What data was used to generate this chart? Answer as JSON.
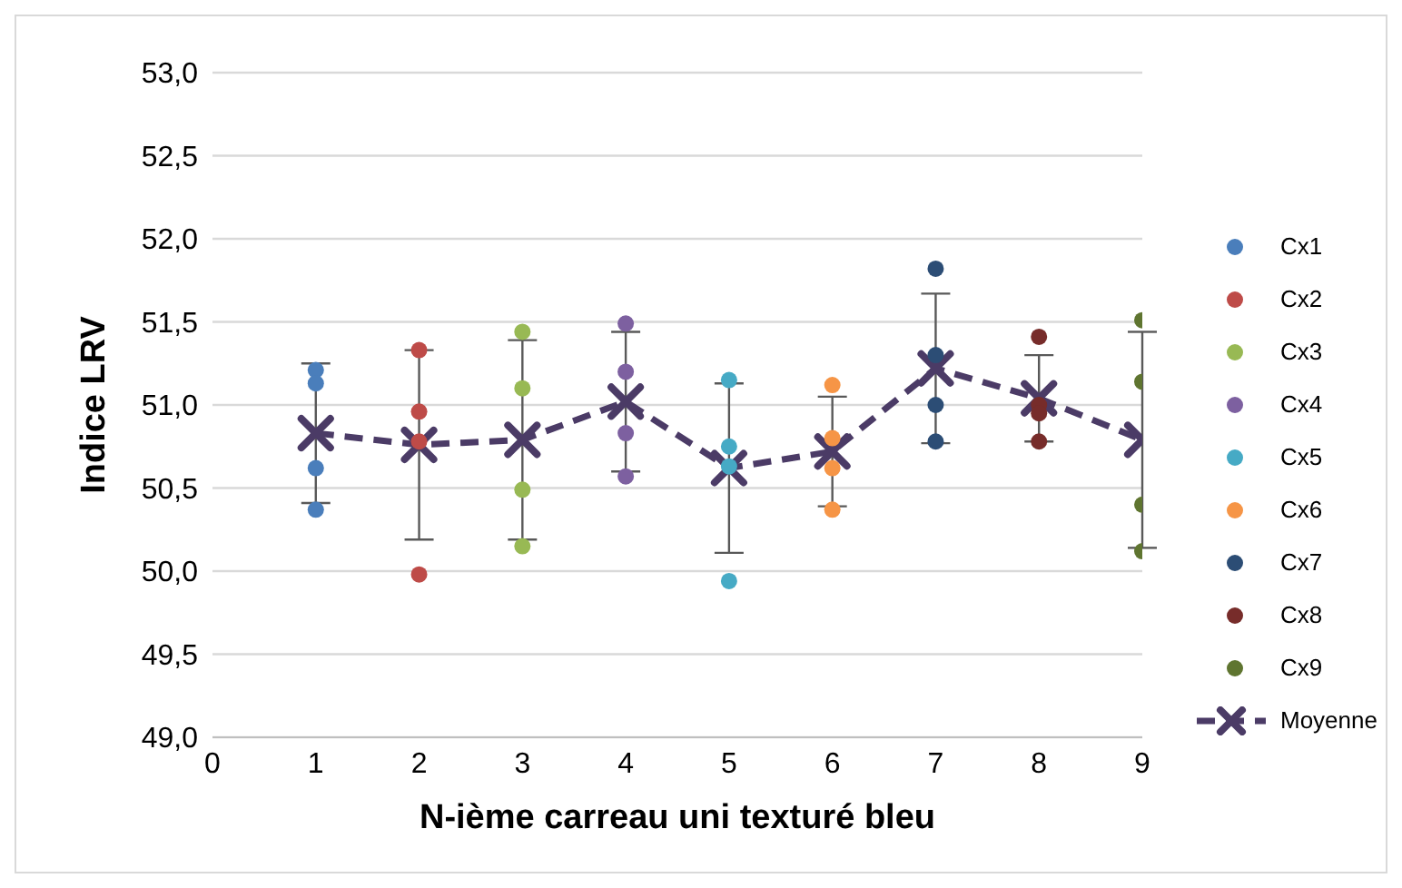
{
  "chart_data": {
    "type": "scatter",
    "xlabel": "N-ième carreau uni texturé bleu",
    "ylabel": "Indice LRV",
    "xlim": [
      0,
      9
    ],
    "xticks": [
      0,
      1,
      2,
      3,
      4,
      5,
      6,
      7,
      8,
      9
    ],
    "ylim": [
      49,
      53
    ],
    "yticks": [
      {
        "value": 49,
        "label": "49,0"
      },
      {
        "value": 49.5,
        "label": "49,5"
      },
      {
        "value": 50,
        "label": "50,0"
      },
      {
        "value": 50.5,
        "label": "50,5"
      },
      {
        "value": 51,
        "label": "51,0"
      },
      {
        "value": 51.5,
        "label": "51,5"
      },
      {
        "value": 52,
        "label": "52,0"
      },
      {
        "value": 52.5,
        "label": "52,5"
      },
      {
        "value": 53,
        "label": "53,0"
      }
    ],
    "grid": "y",
    "legend": "right",
    "marker": "circle",
    "series": [
      {
        "name": "Cx1",
        "color": "#4a7ebb",
        "x": [
          1,
          1,
          1,
          1
        ],
        "values": [
          51.21,
          51.13,
          50.62,
          50.37
        ]
      },
      {
        "name": "Cx2",
        "color": "#be4b48",
        "x": [
          2,
          2,
          2,
          2
        ],
        "values": [
          51.33,
          50.96,
          50.78,
          49.98
        ]
      },
      {
        "name": "Cx3",
        "color": "#98b954",
        "x": [
          3,
          3,
          3,
          3
        ],
        "values": [
          51.44,
          51.1,
          50.49,
          50.15
        ]
      },
      {
        "name": "Cx4",
        "color": "#7d60a0",
        "x": [
          4,
          4,
          4,
          4
        ],
        "values": [
          51.49,
          51.2,
          50.83,
          50.57
        ]
      },
      {
        "name": "Cx5",
        "color": "#46aac5",
        "x": [
          5,
          5,
          5,
          5
        ],
        "values": [
          51.15,
          50.75,
          50.63,
          49.94
        ]
      },
      {
        "name": "Cx6",
        "color": "#f69546",
        "x": [
          6,
          6,
          6,
          6
        ],
        "values": [
          51.12,
          50.8,
          50.62,
          50.37
        ]
      },
      {
        "name": "Cx7",
        "color": "#2c4d75",
        "x": [
          7,
          7,
          7,
          7
        ],
        "values": [
          51.82,
          51.3,
          51.0,
          50.78
        ]
      },
      {
        "name": "Cx8",
        "color": "#772c2a",
        "x": [
          8,
          8,
          8,
          8
        ],
        "values": [
          51.41,
          51.0,
          50.95,
          50.78
        ]
      },
      {
        "name": "Cx9",
        "color": "#5f7530",
        "x": [
          9,
          9,
          9,
          9
        ],
        "values": [
          51.51,
          51.14,
          50.4,
          50.12
        ]
      },
      {
        "name": "Moyenne",
        "type": "line",
        "color": "#4b3b66",
        "marker": "cross",
        "line_style": "dashed",
        "x": [
          1,
          2,
          3,
          4,
          5,
          6,
          7,
          8,
          9
        ],
        "values": [
          50.83,
          50.76,
          50.79,
          51.02,
          50.62,
          50.72,
          51.22,
          51.04,
          50.79
        ],
        "errors": [
          0.42,
          0.57,
          0.6,
          0.42,
          0.51,
          0.33,
          0.45,
          0.26,
          0.65
        ]
      }
    ]
  }
}
